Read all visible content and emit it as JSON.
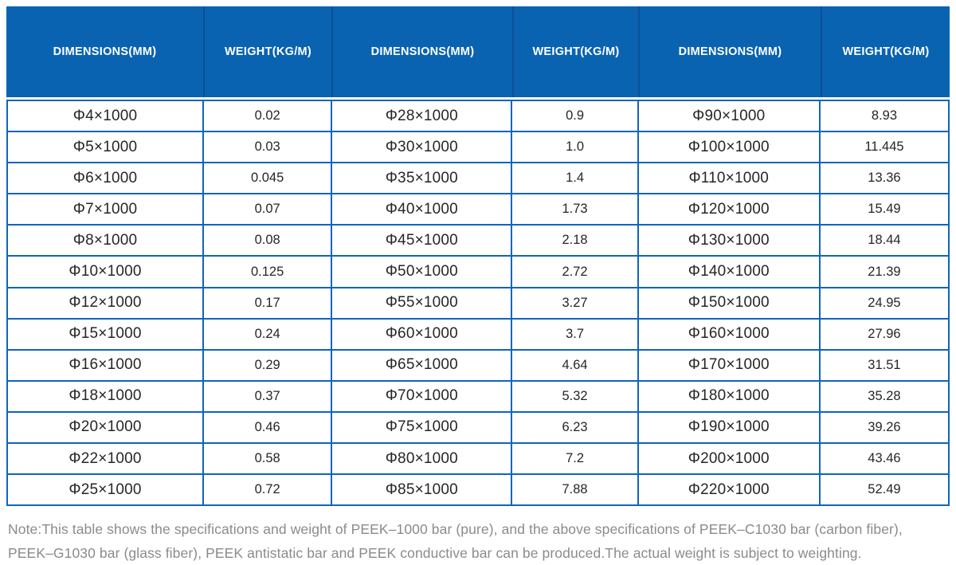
{
  "table": {
    "columns": [
      "DIMENSIONS(MM)",
      "WEIGHT(KG/M)",
      "DIMENSIONS(MM)",
      "WEIGHT(KG/M)",
      "DIMENSIONS(MM)",
      "WEIGHT(KG/M)"
    ],
    "rows": [
      [
        "Φ4×1000",
        "0.02",
        "Φ28×1000",
        "0.9",
        "Φ90×1000",
        "8.93"
      ],
      [
        "Φ5×1000",
        "0.03",
        "Φ30×1000",
        "1.0",
        "Φ100×1000",
        "11.445"
      ],
      [
        "Φ6×1000",
        "0.045",
        "Φ35×1000",
        "1.4",
        "Φ110×1000",
        "13.36"
      ],
      [
        "Φ7×1000",
        "0.07",
        "Φ40×1000",
        "1.73",
        "Φ120×1000",
        "15.49"
      ],
      [
        "Φ8×1000",
        "0.08",
        "Φ45×1000",
        "2.18",
        "Φ130×1000",
        "18.44"
      ],
      [
        "Φ10×1000",
        "0.125",
        "Φ50×1000",
        "2.72",
        "Φ140×1000",
        "21.39"
      ],
      [
        "Φ12×1000",
        "0.17",
        "Φ55×1000",
        "3.27",
        "Φ150×1000",
        "24.95"
      ],
      [
        "Φ15×1000",
        "0.24",
        "Φ60×1000",
        "3.7",
        "Φ160×1000",
        "27.96"
      ],
      [
        "Φ16×1000",
        "0.29",
        "Φ65×1000",
        "4.64",
        "Φ170×1000",
        "31.51"
      ],
      [
        "Φ18×1000",
        "0.37",
        "Φ70×1000",
        "5.32",
        "Φ180×1000",
        "35.28"
      ],
      [
        "Φ20×1000",
        "0.46",
        "Φ75×1000",
        "6.23",
        "Φ190×1000",
        "39.26"
      ],
      [
        "Φ22×1000",
        "0.58",
        "Φ80×1000",
        "7.2",
        "Φ200×1000",
        "43.46"
      ],
      [
        "Φ25×1000",
        "0.72",
        "Φ85×1000",
        "7.88",
        "Φ220×1000",
        "52.49"
      ]
    ]
  },
  "note": {
    "text": "Note:This table shows the specifications and weight of PEEK–1000 bar (pure), and the above specifications of PEEK–C1030 bar (carbon fiber), PEEK–G1030 bar (glass fiber), PEEK antistatic bar and PEEK conductive bar can be produced.The actual weight is subject to weighting."
  },
  "colors": {
    "header_background": "#0a63b0",
    "header_divider": "#0b5097",
    "grid_border": "#0f64c0",
    "header_text": "#ffffff",
    "cell_text": "#262626",
    "note_text": "#8b8b8b"
  }
}
